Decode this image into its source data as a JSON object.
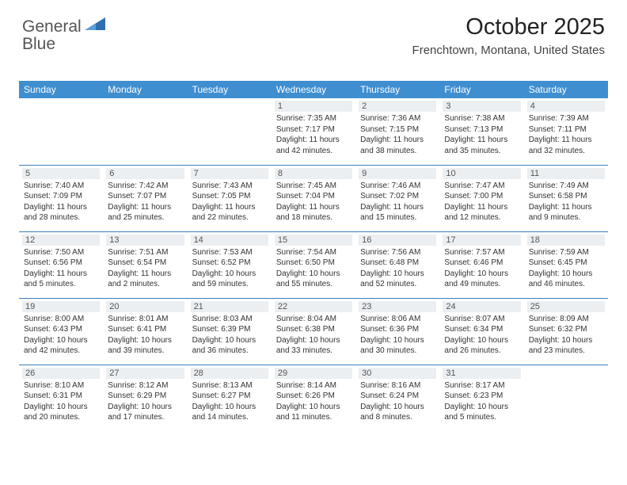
{
  "logo": {
    "word1": "General",
    "word2": "Blue"
  },
  "header": {
    "title": "October 2025",
    "subtitle": "Frenchtown, Montana, United States"
  },
  "colors": {
    "header_bg": "#3e8ed0",
    "header_fg": "#ffffff",
    "row_divider": "#3e7fb8",
    "daybar_bg": "#eceff1",
    "daybar_fg": "#555555",
    "text": "#333333",
    "title": "#222222",
    "logo_gray": "#555555",
    "logo_blue": "#3a7fc4"
  },
  "weekdays": [
    "Sunday",
    "Monday",
    "Tuesday",
    "Wednesday",
    "Thursday",
    "Friday",
    "Saturday"
  ],
  "layout": {
    "first_day_column": 3,
    "num_days": 31,
    "rows": 5,
    "cols": 7
  },
  "days": {
    "1": {
      "sunrise": "7:35 AM",
      "sunset": "7:17 PM",
      "daylight": "11 hours and 42 minutes."
    },
    "2": {
      "sunrise": "7:36 AM",
      "sunset": "7:15 PM",
      "daylight": "11 hours and 38 minutes."
    },
    "3": {
      "sunrise": "7:38 AM",
      "sunset": "7:13 PM",
      "daylight": "11 hours and 35 minutes."
    },
    "4": {
      "sunrise": "7:39 AM",
      "sunset": "7:11 PM",
      "daylight": "11 hours and 32 minutes."
    },
    "5": {
      "sunrise": "7:40 AM",
      "sunset": "7:09 PM",
      "daylight": "11 hours and 28 minutes."
    },
    "6": {
      "sunrise": "7:42 AM",
      "sunset": "7:07 PM",
      "daylight": "11 hours and 25 minutes."
    },
    "7": {
      "sunrise": "7:43 AM",
      "sunset": "7:05 PM",
      "daylight": "11 hours and 22 minutes."
    },
    "8": {
      "sunrise": "7:45 AM",
      "sunset": "7:04 PM",
      "daylight": "11 hours and 18 minutes."
    },
    "9": {
      "sunrise": "7:46 AM",
      "sunset": "7:02 PM",
      "daylight": "11 hours and 15 minutes."
    },
    "10": {
      "sunrise": "7:47 AM",
      "sunset": "7:00 PM",
      "daylight": "11 hours and 12 minutes."
    },
    "11": {
      "sunrise": "7:49 AM",
      "sunset": "6:58 PM",
      "daylight": "11 hours and 9 minutes."
    },
    "12": {
      "sunrise": "7:50 AM",
      "sunset": "6:56 PM",
      "daylight": "11 hours and 5 minutes."
    },
    "13": {
      "sunrise": "7:51 AM",
      "sunset": "6:54 PM",
      "daylight": "11 hours and 2 minutes."
    },
    "14": {
      "sunrise": "7:53 AM",
      "sunset": "6:52 PM",
      "daylight": "10 hours and 59 minutes."
    },
    "15": {
      "sunrise": "7:54 AM",
      "sunset": "6:50 PM",
      "daylight": "10 hours and 55 minutes."
    },
    "16": {
      "sunrise": "7:56 AM",
      "sunset": "6:48 PM",
      "daylight": "10 hours and 52 minutes."
    },
    "17": {
      "sunrise": "7:57 AM",
      "sunset": "6:46 PM",
      "daylight": "10 hours and 49 minutes."
    },
    "18": {
      "sunrise": "7:59 AM",
      "sunset": "6:45 PM",
      "daylight": "10 hours and 46 minutes."
    },
    "19": {
      "sunrise": "8:00 AM",
      "sunset": "6:43 PM",
      "daylight": "10 hours and 42 minutes."
    },
    "20": {
      "sunrise": "8:01 AM",
      "sunset": "6:41 PM",
      "daylight": "10 hours and 39 minutes."
    },
    "21": {
      "sunrise": "8:03 AM",
      "sunset": "6:39 PM",
      "daylight": "10 hours and 36 minutes."
    },
    "22": {
      "sunrise": "8:04 AM",
      "sunset": "6:38 PM",
      "daylight": "10 hours and 33 minutes."
    },
    "23": {
      "sunrise": "8:06 AM",
      "sunset": "6:36 PM",
      "daylight": "10 hours and 30 minutes."
    },
    "24": {
      "sunrise": "8:07 AM",
      "sunset": "6:34 PM",
      "daylight": "10 hours and 26 minutes."
    },
    "25": {
      "sunrise": "8:09 AM",
      "sunset": "6:32 PM",
      "daylight": "10 hours and 23 minutes."
    },
    "26": {
      "sunrise": "8:10 AM",
      "sunset": "6:31 PM",
      "daylight": "10 hours and 20 minutes."
    },
    "27": {
      "sunrise": "8:12 AM",
      "sunset": "6:29 PM",
      "daylight": "10 hours and 17 minutes."
    },
    "28": {
      "sunrise": "8:13 AM",
      "sunset": "6:27 PM",
      "daylight": "10 hours and 14 minutes."
    },
    "29": {
      "sunrise": "8:14 AM",
      "sunset": "6:26 PM",
      "daylight": "10 hours and 11 minutes."
    },
    "30": {
      "sunrise": "8:16 AM",
      "sunset": "6:24 PM",
      "daylight": "10 hours and 8 minutes."
    },
    "31": {
      "sunrise": "8:17 AM",
      "sunset": "6:23 PM",
      "daylight": "10 hours and 5 minutes."
    }
  },
  "labels": {
    "sunrise": "Sunrise:",
    "sunset": "Sunset:",
    "daylight": "Daylight:"
  }
}
